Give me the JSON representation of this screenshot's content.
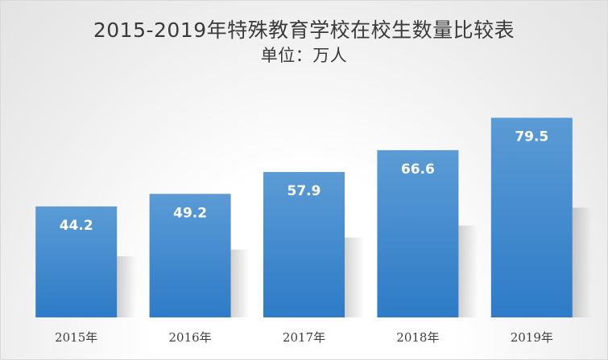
{
  "chart_data": {
    "type": "bar",
    "title": "2015-2019年特殊教育学校在校生数量比较表",
    "subtitle": "单位：万人",
    "categories": [
      "2015年",
      "2016年",
      "2017年",
      "2018年",
      "2019年"
    ],
    "values": [
      44.2,
      49.2,
      57.9,
      66.6,
      79.5
    ],
    "value_labels": [
      "44.2",
      "49.2",
      "57.9",
      "66.6",
      "79.5"
    ],
    "bar_color_top": "#5b9bd5",
    "bar_color_bottom": "#2e7bc7",
    "grid": false,
    "legend": "none",
    "ylim": [
      0,
      88
    ]
  }
}
